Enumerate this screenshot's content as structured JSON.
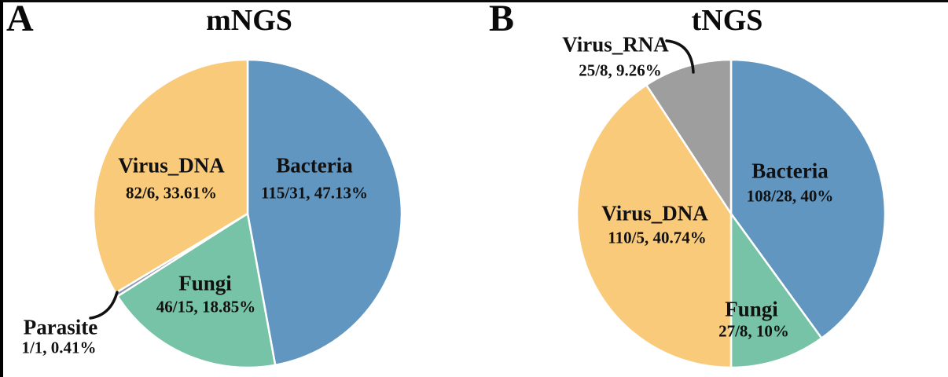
{
  "figure": {
    "background_color": "#ffffff",
    "frame_color": "#000000",
    "text_color": "#111111"
  },
  "chart_data": [
    {
      "type": "pie",
      "panel_letter": "A",
      "title": "mNGS",
      "direction": "clockwise",
      "start_angle": "12-oclock",
      "legend_position": "labels-on-slices",
      "slices": [
        {
          "label": "Bacteria",
          "counts": "115/31",
          "percent": 47.13,
          "value_text": "115/31, 47.13%",
          "color": "#6196c1"
        },
        {
          "label": "Fungi",
          "counts": "46/15",
          "percent": 18.85,
          "value_text": "46/15, 18.85%",
          "color": "#77c3a7"
        },
        {
          "label": "Parasite",
          "counts": "1/1",
          "percent": 0.41,
          "value_text": "1/1, 0.41%",
          "color": "#8c99b4"
        },
        {
          "label": "Virus_DNA",
          "counts": "82/6",
          "percent": 33.61,
          "value_text": "82/6, 33.61%",
          "color": "#f9ca79"
        }
      ]
    },
    {
      "type": "pie",
      "panel_letter": "B",
      "title": "tNGS",
      "direction": "clockwise",
      "start_angle": "12-oclock",
      "legend_position": "labels-on-slices",
      "slices": [
        {
          "label": "Bacteria",
          "counts": "108/28",
          "percent": 40.0,
          "value_text": "108/28, 40%",
          "color": "#6196c1"
        },
        {
          "label": "Fungi",
          "counts": "27/8",
          "percent": 10.0,
          "value_text": "27/8, 10%",
          "color": "#77c3a7"
        },
        {
          "label": "Virus_DNA",
          "counts": "110/5",
          "percent": 40.74,
          "value_text": "110/5, 40.74%",
          "color": "#f9ca79"
        },
        {
          "label": "Virus_RNA",
          "counts": "25/8",
          "percent": 9.26,
          "value_text": "25/8, 9.26%",
          "color": "#9e9e9e"
        }
      ]
    }
  ]
}
